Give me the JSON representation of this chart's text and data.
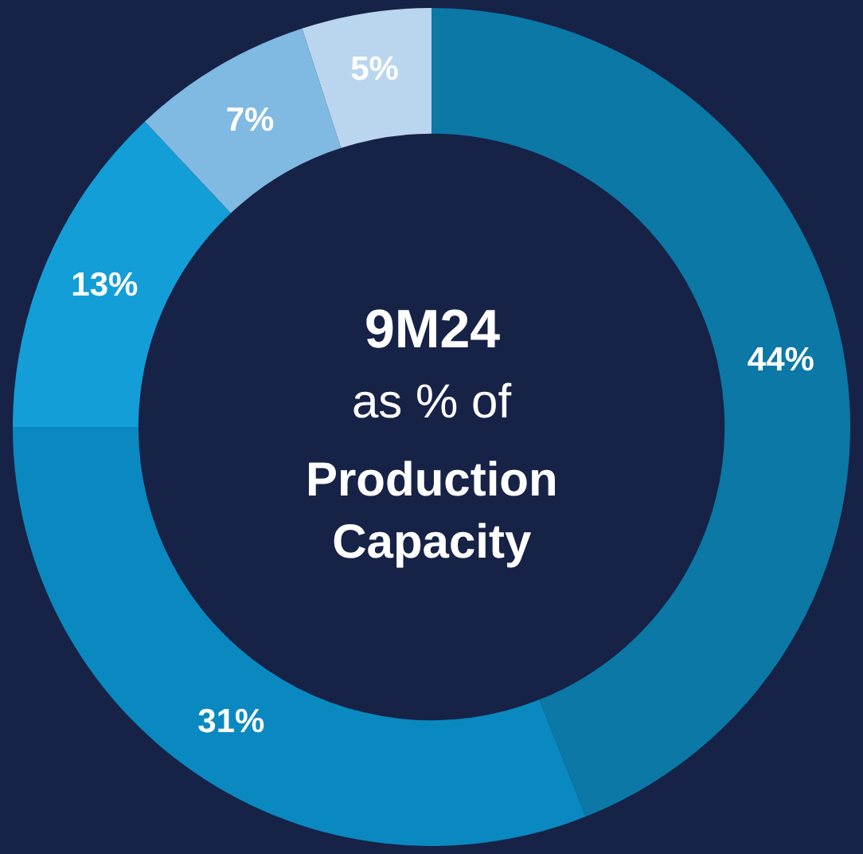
{
  "chart_data": {
    "type": "donut",
    "title": "9M24",
    "subtitle": "as % of",
    "annotations": [
      "Production Capacity"
    ],
    "categories": [
      null,
      null,
      null,
      null,
      null
    ],
    "values": [
      44,
      31,
      13,
      7,
      5
    ],
    "value_labels": [
      "44%",
      "31%",
      "13%",
      "7%",
      "5%"
    ],
    "colors": [
      "#0b78a6",
      "#0a89c0",
      "#139ed8",
      "#80b9e2",
      "#b9d6ee"
    ],
    "legend": false
  }
}
